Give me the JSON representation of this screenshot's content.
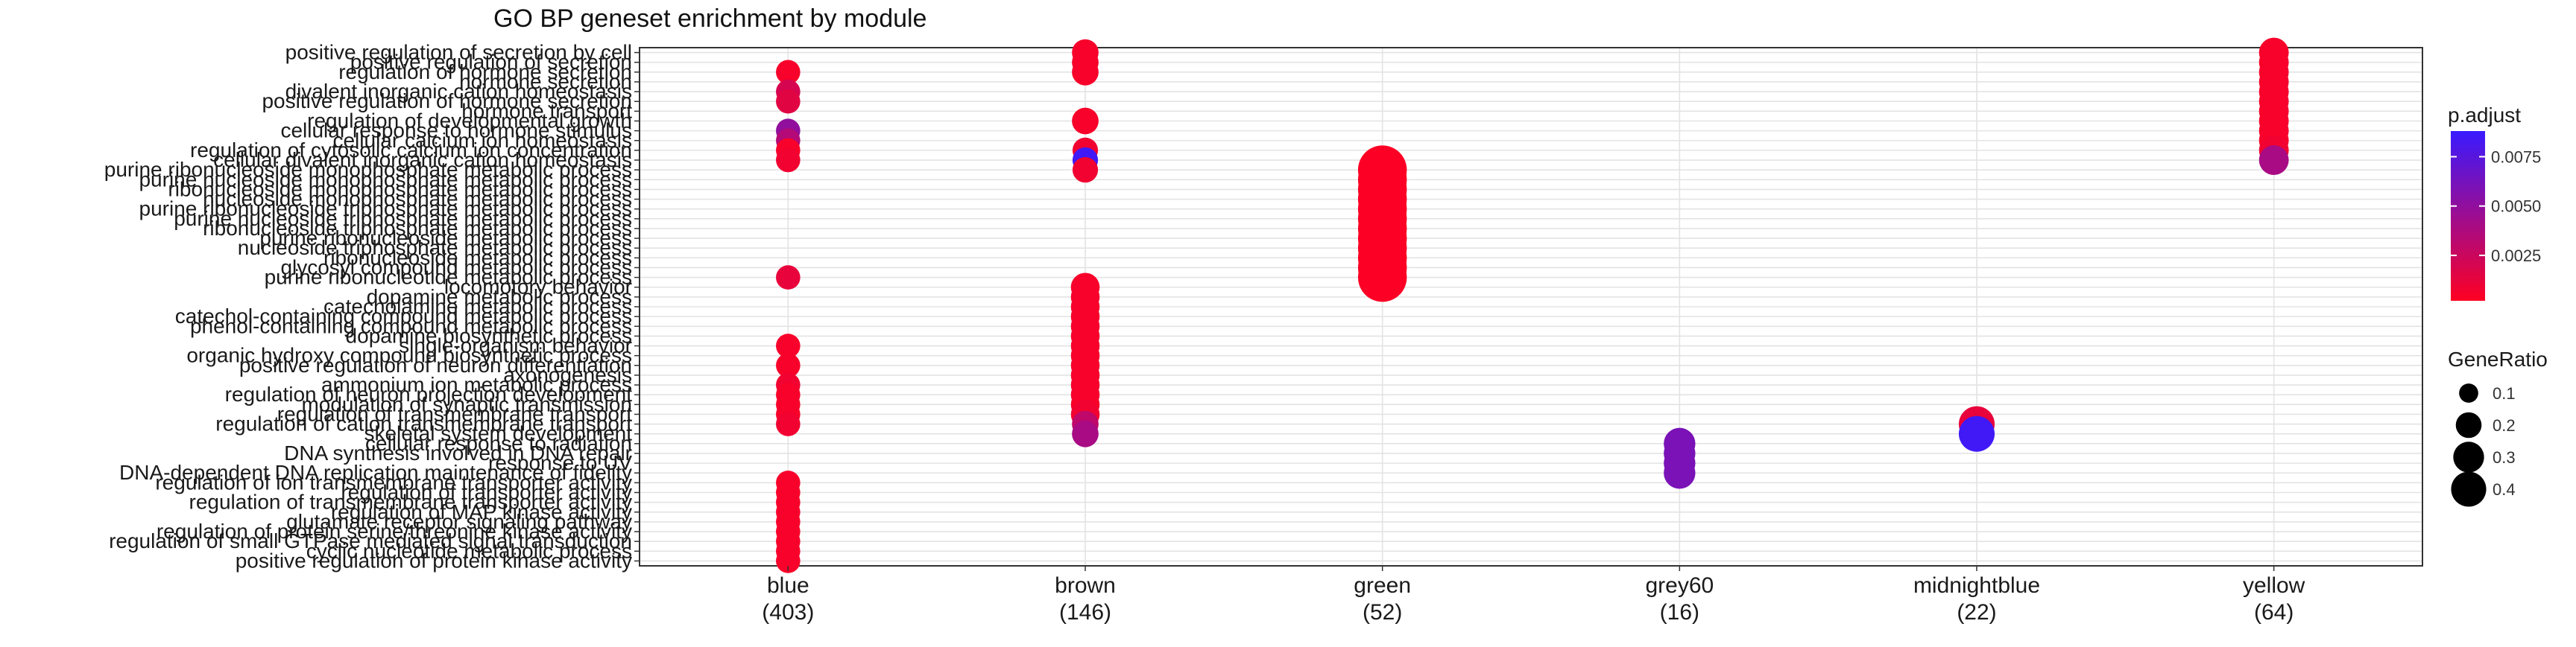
{
  "chart_data": {
    "type": "scatter",
    "title": "GO BP geneset enrichment by module",
    "xlabel": "",
    "ylabel": "",
    "grid": true,
    "legend_position": "right",
    "x_categories": [
      "blue\n(403)",
      "brown\n(146)",
      "green\n(52)",
      "grey60\n(16)",
      "midnightblue\n(22)",
      "yellow\n(64)"
    ],
    "y_categories": [
      "positive regulation of secretion by cell",
      "positive regulation of secretion",
      "regulation of hormone secretion",
      "hormone secretion",
      "divalent inorganic cation homeostasis",
      "positive regulation of hormone secretion",
      "hormone transport",
      "regulation of developmental growth",
      "cellular response to hormone stimulus",
      "cellular calcium ion homeostasis",
      "regulation of cytosolic calcium ion concentration",
      "cellular divalent inorganic cation homeostasis",
      "purine ribonucleoside monophosphate metabolic process",
      "purine nucleoside monophosphate metabolic process",
      "ribonucleoside monophosphate metabolic process",
      "nucleoside monophosphate metabolic process",
      "purine ribonucleoside triphosphate metabolic process",
      "purine nucleoside triphosphate metabolic process",
      "ribonucleoside triphosphate metabolic process",
      "purine ribonucleoside metabolic process",
      "nucleoside triphosphate metabolic process",
      "ribonucleoside metabolic process",
      "glycosyl compound metabolic process",
      "purine ribonucleotide metabolic process",
      "locomotory behavior",
      "dopamine metabolic process",
      "catecholamine metabolic process",
      "catechol-containing compound metabolic process",
      "phenol-containing compound metabolic process",
      "dopamine biosynthetic process",
      "single-organism behavior",
      "organic hydroxy compound biosynthetic process",
      "positive regulation of neuron differentiation",
      "axonogenesis",
      "ammonium ion metabolic process",
      "regulation of neuron projection development",
      "modulation of synaptic transmission",
      "regulation of transmembrane transport",
      "regulation of cation transmembrane transport",
      "skeletal system development",
      "cellular response to radiation",
      "DNA synthesis involved in DNA repair",
      "response to UV",
      "DNA-dependent DNA replication maintenance of fidelity",
      "regulation of ion transmembrane transporter activity",
      "regulation of transporter activity",
      "regulation of transmembrane transporter activity",
      "regulation of MAP kinase activity",
      "glutamate receptor signaling pathway",
      "regulation of protein serine/threonine kinase activity",
      "regulation of small GTPase mediated signal transduction",
      "cyclic nucleotide metabolic process",
      "positive regulation of protein kinase activity"
    ],
    "ytick_labels": [
      "positive regulation of secretion by cell",
      "positive regulation of secretion",
      "regulation of hormone secretion",
      "hormone secretion",
      "divalent inorganic cation homeostasis",
      "positive regulation of hormone secretion",
      "hormone transport",
      "regulation of developmental growth",
      "cellular response to hormone stimulus",
      "cellular calcium ion homeostasis",
      "regulation of cytosolic calcium ion concentration",
      "cellular divalent inorganic cation homeostasis",
      "purine ribonucleoside monophosphate metabolic process",
      "purine nucleoside monophosphate metabolic process",
      "ribonucleoside monophosphate metabolic process",
      "nucleoside monophosphate metabolic process",
      "purine ribonucleoside triphosphate metabolic process",
      "purine nucleoside triphosphate metabolic process",
      "ribonucleoside triphosphate metabolic process",
      "purine ribonucleoside metabolic process",
      "nucleoside triphosphate metabolic process",
      "ribonucleoside metabolic process",
      "glycosyl compound metabolic process",
      "purine ribonucleotide metabolic process",
      "locomotory behavior",
      "dopamine metabolic process",
      "catecholamine metabolic process",
      "catechol-containing compound metabolic process",
      "phenol-containing compound metabolic process",
      "dopamine biosynthetic process",
      "single-organism behavior",
      "organic hydroxy compound biosynthetic process",
      "positive regulation of neuron differentiation",
      "axonogenesis",
      "ammonium ion metabolic process",
      "regulation of neuron projection development",
      "modulation of synaptic transmission",
      "regulation of transmembrane transport",
      "regulation of cation transmembrane transport",
      "skeletal system development",
      "cellular response to radiation",
      "DNA synthesis involved in DNA repair",
      "response to UV",
      "DNA-dependent DNA replication maintenance of fidelity",
      "regulation of ion transmembrane transporter activity",
      "regulation of transporter activity",
      "regulation of transmembrane transporter activity",
      "regulation of MAP kinase activity",
      "glutamate receptor signaling pathway",
      "regulation of protein serine/threonine kinase activity",
      "regulation of small GTPase mediated signal transduction",
      "cyclic nucleotide metabolic process",
      "positive regulation of protein kinase activity"
    ],
    "points": [
      {
        "x": "blue\n(403)",
        "y": "regulation of hormone secretion",
        "gene_ratio": 0.08,
        "p_adjust": 0.0005
      },
      {
        "x": "blue\n(403)",
        "y": "divalent inorganic cation homeostasis",
        "gene_ratio": 0.08,
        "p_adjust": 0.002
      },
      {
        "x": "blue\n(403)",
        "y": "positive regulation of hormone secretion",
        "gene_ratio": 0.08,
        "p_adjust": 0.0015
      },
      {
        "x": "blue\n(403)",
        "y": "cellular response to hormone stimulus",
        "gene_ratio": 0.08,
        "p_adjust": 0.005
      },
      {
        "x": "blue\n(403)",
        "y": "cellular calcium ion homeostasis",
        "gene_ratio": 0.08,
        "p_adjust": 0.0035
      },
      {
        "x": "blue\n(403)",
        "y": "regulation of cytosolic calcium ion concentration",
        "gene_ratio": 0.08,
        "p_adjust": 0.0005
      },
      {
        "x": "blue\n(403)",
        "y": "cellular divalent inorganic cation homeostasis",
        "gene_ratio": 0.08,
        "p_adjust": 0.0008
      },
      {
        "x": "blue\n(403)",
        "y": "purine ribonucleotide metabolic process",
        "gene_ratio": 0.08,
        "p_adjust": 0.0012
      },
      {
        "x": "blue\n(403)",
        "y": "single-organism behavior",
        "gene_ratio": 0.08,
        "p_adjust": 0.0005
      },
      {
        "x": "blue\n(403)",
        "y": "positive regulation of neuron differentiation",
        "gene_ratio": 0.08,
        "p_adjust": 0.0005
      },
      {
        "x": "blue\n(403)",
        "y": "ammonium ion metabolic process",
        "gene_ratio": 0.08,
        "p_adjust": 0.0008
      },
      {
        "x": "blue\n(403)",
        "y": "regulation of neuron projection development",
        "gene_ratio": 0.08,
        "p_adjust": 0.0005
      },
      {
        "x": "blue\n(403)",
        "y": "modulation of synaptic transmission",
        "gene_ratio": 0.08,
        "p_adjust": 0.0005
      },
      {
        "x": "blue\n(403)",
        "y": "regulation of transmembrane transport",
        "gene_ratio": 0.08,
        "p_adjust": 0.0005
      },
      {
        "x": "blue\n(403)",
        "y": "regulation of cation transmembrane transport",
        "gene_ratio": 0.08,
        "p_adjust": 0.0008
      },
      {
        "x": "blue\n(403)",
        "y": "regulation of ion transmembrane transporter activity",
        "gene_ratio": 0.08,
        "p_adjust": 0.0005
      },
      {
        "x": "blue\n(403)",
        "y": "regulation of transporter activity",
        "gene_ratio": 0.08,
        "p_adjust": 0.0005
      },
      {
        "x": "blue\n(403)",
        "y": "regulation of transmembrane transporter activity",
        "gene_ratio": 0.08,
        "p_adjust": 0.0005
      },
      {
        "x": "blue\n(403)",
        "y": "regulation of MAP kinase activity",
        "gene_ratio": 0.08,
        "p_adjust": 0.0005
      },
      {
        "x": "blue\n(403)",
        "y": "glutamate receptor signaling pathway",
        "gene_ratio": 0.08,
        "p_adjust": 0.0005
      },
      {
        "x": "blue\n(403)",
        "y": "regulation of protein serine/threonine kinase activity",
        "gene_ratio": 0.08,
        "p_adjust": 0.0005
      },
      {
        "x": "blue\n(403)",
        "y": "regulation of small GTPase mediated signal transduction",
        "gene_ratio": 0.08,
        "p_adjust": 0.0005
      },
      {
        "x": "blue\n(403)",
        "y": "cyclic nucleotide metabolic process",
        "gene_ratio": 0.08,
        "p_adjust": 0.0005
      },
      {
        "x": "blue\n(403)",
        "y": "positive regulation of protein kinase activity",
        "gene_ratio": 0.08,
        "p_adjust": 0.0005
      },
      {
        "x": "brown\n(146)",
        "y": "positive regulation of secretion by cell",
        "gene_ratio": 0.1,
        "p_adjust": 0.0005
      },
      {
        "x": "brown\n(146)",
        "y": "positive regulation of secretion",
        "gene_ratio": 0.1,
        "p_adjust": 0.0005
      },
      {
        "x": "brown\n(146)",
        "y": "regulation of hormone secretion",
        "gene_ratio": 0.1,
        "p_adjust": 0.0005
      },
      {
        "x": "brown\n(146)",
        "y": "regulation of developmental growth",
        "gene_ratio": 0.1,
        "p_adjust": 0.0005
      },
      {
        "x": "brown\n(146)",
        "y": "regulation of cytosolic calcium ion concentration",
        "gene_ratio": 0.09,
        "p_adjust": 0.0008
      },
      {
        "x": "brown\n(146)",
        "y": "cellular divalent inorganic cation homeostasis",
        "gene_ratio": 0.09,
        "p_adjust": 0.0085
      },
      {
        "x": "brown\n(146)",
        "y": "purine ribonucleoside monophosphate metabolic process",
        "gene_ratio": 0.09,
        "p_adjust": 0.0008
      },
      {
        "x": "brown\n(146)",
        "y": "locomotory behavior",
        "gene_ratio": 0.12,
        "p_adjust": 0.0005
      },
      {
        "x": "brown\n(146)",
        "y": "dopamine metabolic process",
        "gene_ratio": 0.12,
        "p_adjust": 0.0005
      },
      {
        "x": "brown\n(146)",
        "y": "catecholamine metabolic process",
        "gene_ratio": 0.12,
        "p_adjust": 0.0005
      },
      {
        "x": "brown\n(146)",
        "y": "catechol-containing compound metabolic process",
        "gene_ratio": 0.12,
        "p_adjust": 0.0005
      },
      {
        "x": "brown\n(146)",
        "y": "phenol-containing compound metabolic process",
        "gene_ratio": 0.12,
        "p_adjust": 0.0005
      },
      {
        "x": "brown\n(146)",
        "y": "dopamine biosynthetic process",
        "gene_ratio": 0.12,
        "p_adjust": 0.0005
      },
      {
        "x": "brown\n(146)",
        "y": "single-organism behavior",
        "gene_ratio": 0.12,
        "p_adjust": 0.0005
      },
      {
        "x": "brown\n(146)",
        "y": "organic hydroxy compound biosynthetic process",
        "gene_ratio": 0.12,
        "p_adjust": 0.0005
      },
      {
        "x": "brown\n(146)",
        "y": "positive regulation of neuron differentiation",
        "gene_ratio": 0.12,
        "p_adjust": 0.0005
      },
      {
        "x": "brown\n(146)",
        "y": "axonogenesis",
        "gene_ratio": 0.12,
        "p_adjust": 0.0005
      },
      {
        "x": "brown\n(146)",
        "y": "ammonium ion metabolic process",
        "gene_ratio": 0.12,
        "p_adjust": 0.0005
      },
      {
        "x": "brown\n(146)",
        "y": "regulation of neuron projection development",
        "gene_ratio": 0.12,
        "p_adjust": 0.0005
      },
      {
        "x": "brown\n(146)",
        "y": "modulation of synaptic transmission",
        "gene_ratio": 0.12,
        "p_adjust": 0.0005
      },
      {
        "x": "brown\n(146)",
        "y": "regulation of transmembrane transport",
        "gene_ratio": 0.12,
        "p_adjust": 0.0008
      },
      {
        "x": "brown\n(146)",
        "y": "regulation of cation transmembrane transport",
        "gene_ratio": 0.1,
        "p_adjust": 0.003
      },
      {
        "x": "brown\n(146)",
        "y": "skeletal system development",
        "gene_ratio": 0.1,
        "p_adjust": 0.004
      },
      {
        "x": "green\n(52)",
        "y": "purine ribonucleoside monophosphate metabolic process",
        "gene_ratio": 0.4,
        "p_adjust": 0.0003
      },
      {
        "x": "green\n(52)",
        "y": "purine nucleoside monophosphate metabolic process",
        "gene_ratio": 0.4,
        "p_adjust": 0.0003
      },
      {
        "x": "green\n(52)",
        "y": "ribonucleoside monophosphate metabolic process",
        "gene_ratio": 0.4,
        "p_adjust": 0.0003
      },
      {
        "x": "green\n(52)",
        "y": "nucleoside monophosphate metabolic process",
        "gene_ratio": 0.4,
        "p_adjust": 0.0003
      },
      {
        "x": "green\n(52)",
        "y": "purine ribonucleoside triphosphate metabolic process",
        "gene_ratio": 0.4,
        "p_adjust": 0.0003
      },
      {
        "x": "green\n(52)",
        "y": "purine nucleoside triphosphate metabolic process",
        "gene_ratio": 0.4,
        "p_adjust": 0.0003
      },
      {
        "x": "green\n(52)",
        "y": "ribonucleoside triphosphate metabolic process",
        "gene_ratio": 0.4,
        "p_adjust": 0.0003
      },
      {
        "x": "green\n(52)",
        "y": "purine ribonucleoside metabolic process",
        "gene_ratio": 0.4,
        "p_adjust": 0.0003
      },
      {
        "x": "green\n(52)",
        "y": "nucleoside triphosphate metabolic process",
        "gene_ratio": 0.4,
        "p_adjust": 0.0003
      },
      {
        "x": "green\n(52)",
        "y": "ribonucleoside metabolic process",
        "gene_ratio": 0.4,
        "p_adjust": 0.0003
      },
      {
        "x": "green\n(52)",
        "y": "glycosyl compound metabolic process",
        "gene_ratio": 0.4,
        "p_adjust": 0.0003
      },
      {
        "x": "green\n(52)",
        "y": "purine ribonucleotide metabolic process",
        "gene_ratio": 0.4,
        "p_adjust": 0.0003
      },
      {
        "x": "grey60\n(16)",
        "y": "cellular response to radiation",
        "gene_ratio": 0.15,
        "p_adjust": 0.006
      },
      {
        "x": "grey60\n(16)",
        "y": "DNA synthesis involved in DNA repair",
        "gene_ratio": 0.15,
        "p_adjust": 0.006
      },
      {
        "x": "grey60\n(16)",
        "y": "response to UV",
        "gene_ratio": 0.15,
        "p_adjust": 0.006
      },
      {
        "x": "grey60\n(16)",
        "y": "DNA-dependent DNA replication maintenance of fidelity",
        "gene_ratio": 0.15,
        "p_adjust": 0.006
      },
      {
        "x": "midnightblue\n(22)",
        "y": "regulation of cation transmembrane transport",
        "gene_ratio": 0.2,
        "p_adjust": 0.0012
      },
      {
        "x": "midnightblue\n(22)",
        "y": "skeletal system development",
        "gene_ratio": 0.2,
        "p_adjust": 0.0085
      },
      {
        "x": "yellow\n(64)",
        "y": "positive regulation of secretion by cell",
        "gene_ratio": 0.13,
        "p_adjust": 0.0005
      },
      {
        "x": "yellow\n(64)",
        "y": "positive regulation of secretion",
        "gene_ratio": 0.13,
        "p_adjust": 0.0005
      },
      {
        "x": "yellow\n(64)",
        "y": "regulation of hormone secretion",
        "gene_ratio": 0.13,
        "p_adjust": 0.0005
      },
      {
        "x": "yellow\n(64)",
        "y": "hormone secretion",
        "gene_ratio": 0.13,
        "p_adjust": 0.0005
      },
      {
        "x": "yellow\n(64)",
        "y": "divalent inorganic cation homeostasis",
        "gene_ratio": 0.13,
        "p_adjust": 0.0005
      },
      {
        "x": "yellow\n(64)",
        "y": "positive regulation of hormone secretion",
        "gene_ratio": 0.13,
        "p_adjust": 0.0005
      },
      {
        "x": "yellow\n(64)",
        "y": "hormone transport",
        "gene_ratio": 0.13,
        "p_adjust": 0.0005
      },
      {
        "x": "yellow\n(64)",
        "y": "regulation of developmental growth",
        "gene_ratio": 0.13,
        "p_adjust": 0.0005
      },
      {
        "x": "yellow\n(64)",
        "y": "cellular response to hormone stimulus",
        "gene_ratio": 0.13,
        "p_adjust": 0.0005
      },
      {
        "x": "yellow\n(64)",
        "y": "cellular calcium ion homeostasis",
        "gene_ratio": 0.13,
        "p_adjust": 0.0005
      },
      {
        "x": "yellow\n(64)",
        "y": "regulation of cytosolic calcium ion concentration",
        "gene_ratio": 0.13,
        "p_adjust": 0.0008
      },
      {
        "x": "yellow\n(64)",
        "y": "cellular divalent inorganic cation homeostasis",
        "gene_ratio": 0.13,
        "p_adjust": 0.004
      }
    ],
    "color_legend": {
      "title": "p.adjust",
      "ticks": [
        0.0025,
        0.005,
        0.0075
      ],
      "tick_labels": [
        "0.0025",
        "0.0050",
        "0.0075"
      ],
      "range": [
        0.0002,
        0.0088
      ],
      "low_color": "#ff0022",
      "high_color": "#3a1aff"
    },
    "size_legend": {
      "title": "GeneRatio",
      "values": [
        0.1,
        0.2,
        0.3,
        0.4
      ],
      "labels": [
        "0.1",
        "0.2",
        "0.3",
        "0.4"
      ]
    }
  }
}
